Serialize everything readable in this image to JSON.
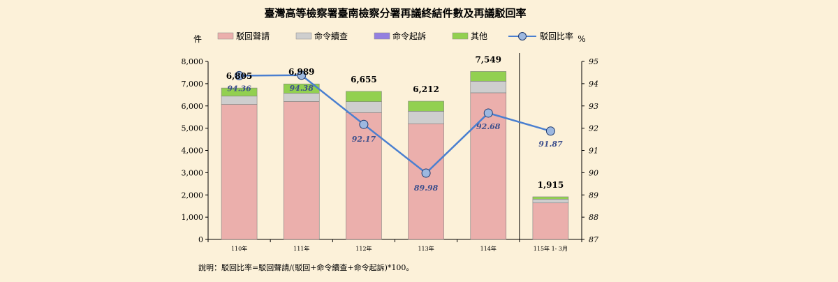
{
  "chart_data": {
    "type": "bar",
    "title": "臺灣高等檢察署臺南檢察分署再議終結件數及再議駁回率",
    "y_unit_left": "件",
    "y_unit_right": "%",
    "ylim": [
      0,
      8000
    ],
    "ylim_right": [
      87,
      95
    ],
    "yticks": [
      "0",
      "1,000",
      "2,000",
      "3,000",
      "4,000",
      "5,000",
      "6,000",
      "7,000",
      "8,000"
    ],
    "yticks_right": [
      "87",
      "88",
      "89",
      "90",
      "91",
      "92",
      "93",
      "94",
      "95"
    ],
    "categories": [
      "110年",
      "111年",
      "112年",
      "113年",
      "114年",
      "115年 1- 3月"
    ],
    "series": [
      {
        "name": "駁回聲請",
        "color": "#EBAFAC",
        "values": [
          6070,
          6200,
          5700,
          5200,
          6590,
          1640
        ]
      },
      {
        "name": "命令續查",
        "color": "#CECECE",
        "values": [
          370,
          370,
          490,
          560,
          520,
          170
        ]
      },
      {
        "name": "命令起訴",
        "color": "#9480E0",
        "values": [
          0,
          0,
          0,
          0,
          0,
          0
        ]
      },
      {
        "name": "其他",
        "color": "#92D050",
        "values": [
          365,
          419,
          465,
          452,
          439,
          105
        ]
      }
    ],
    "totals": [
      "6,805",
      "6,989",
      "6,655",
      "6,212",
      "7,549",
      "1,915"
    ],
    "line_series": {
      "name": "駁回比率",
      "color": "#4A7FD0",
      "values": [
        94.36,
        94.38,
        92.17,
        89.98,
        92.68,
        91.87
      ]
    },
    "rate_labels": [
      "94.36",
      "94.38",
      "92.17",
      "89.98",
      "92.68",
      "91.87"
    ],
    "grid": false,
    "legend_position": "top"
  },
  "note": "說明：駁回比率=駁回聲請/(駁回+命令續查+命令起訴)*100。"
}
